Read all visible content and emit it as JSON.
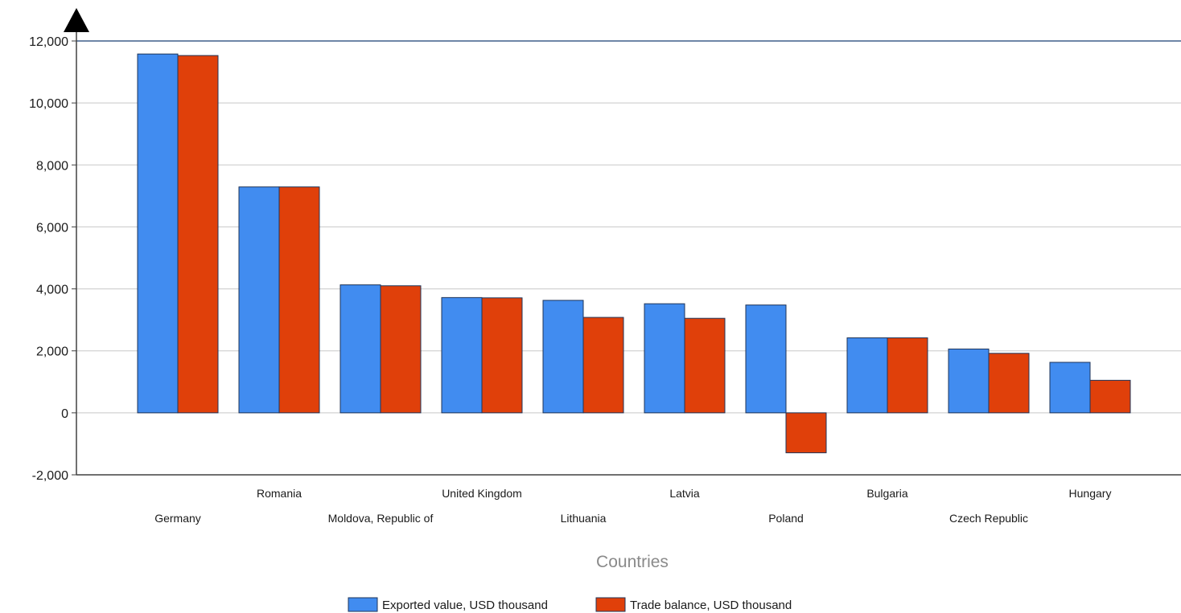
{
  "chart_data": {
    "type": "bar",
    "xlabel": "Countries",
    "ylabel": "",
    "ylim": [
      -2000,
      12000
    ],
    "yticks": [
      -2000,
      0,
      2000,
      4000,
      6000,
      8000,
      10000,
      12000
    ],
    "ytick_labels": [
      "-2,000",
      "0",
      "2,000",
      "4,000",
      "6,000",
      "8,000",
      "10,000",
      "12,000"
    ],
    "grid": true,
    "legend_position": "bottom",
    "categories": [
      "Germany",
      "Romania",
      "Moldova, Republic of",
      "United Kingdom",
      "Lithuania",
      "Latvia",
      "Poland",
      "Bulgaria",
      "Czech Republic",
      "Hungary"
    ],
    "series": [
      {
        "name": "Exported value, USD thousand",
        "color": "#418CF0",
        "values": [
          11580,
          7290,
          4130,
          3720,
          3630,
          3520,
          3480,
          2420,
          2060,
          1630
        ]
      },
      {
        "name": "Trade balance, USD thousand",
        "color": "#E0400A",
        "values": [
          11530,
          7290,
          4100,
          3710,
          3080,
          3050,
          -1290,
          2420,
          1920,
          1050
        ]
      }
    ]
  }
}
